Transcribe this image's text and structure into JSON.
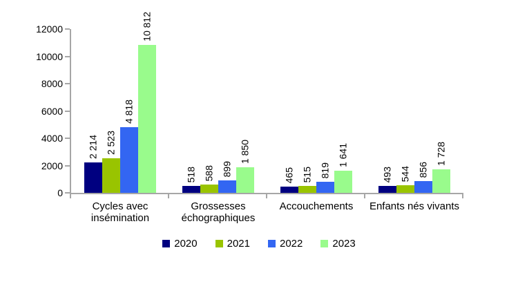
{
  "chart_data": {
    "type": "bar",
    "title": "",
    "categories": [
      "Cycles avec\ninsémination",
      "Grossesses\néchographiques",
      "Accouchements",
      "Enfants nés vivants"
    ],
    "series": [
      {
        "name": "2020",
        "color": "#000080",
        "values": [
          2214,
          518,
          465,
          493
        ],
        "value_labels": [
          "2 214",
          "518",
          "465",
          "493"
        ]
      },
      {
        "name": "2021",
        "color": "#99C400",
        "values": [
          2523,
          588,
          515,
          544
        ],
        "value_labels": [
          "2 523",
          "588",
          "515",
          "544"
        ]
      },
      {
        "name": "2022",
        "color": "#3366F2",
        "values": [
          4818,
          899,
          819,
          856
        ],
        "value_labels": [
          "4 818",
          "899",
          "819",
          "856"
        ]
      },
      {
        "name": "2023",
        "color": "#99FB8C",
        "values": [
          10812,
          1850,
          1641,
          1728
        ],
        "value_labels": [
          "10 812",
          "1 850",
          "1 641",
          "1 728"
        ]
      }
    ],
    "y_axis": {
      "min": 0,
      "max": 12000,
      "step": 2000,
      "tick_labels": [
        "0",
        "2000",
        "4000",
        "6000",
        "8000",
        "10000",
        "12000"
      ]
    },
    "legend": {
      "position": "bottom",
      "entries": [
        "2020",
        "2021",
        "2022",
        "2023"
      ]
    },
    "axis_color": "#A6A6A6",
    "text_color": "#000000",
    "grid": false
  }
}
